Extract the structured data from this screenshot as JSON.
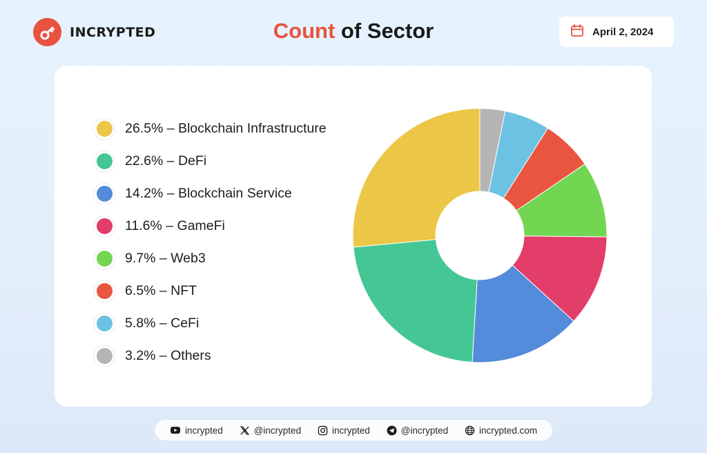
{
  "brand": {
    "name": "INCRYPTED",
    "logo_icon": "key-icon",
    "accent": "#e8523f"
  },
  "header": {
    "title_accent": "Count",
    "title_rest": " of Sector",
    "date": "April 2, 2024",
    "date_icon": "calendar-icon"
  },
  "chart_data": {
    "type": "pie",
    "variant": "donut",
    "title": "Count of Sector",
    "start": "top",
    "direction": "counter-clockwise",
    "legend_position": "left",
    "slices": [
      {
        "label": "Blockchain Infrastructure",
        "value": 26.5,
        "color": "#ecc646",
        "legend": "26.5% – Blockchain Infrastructure"
      },
      {
        "label": "DeFi",
        "value": 22.6,
        "color": "#45c795",
        "legend": "22.6% – DeFi"
      },
      {
        "label": "Blockchain Service",
        "value": 14.2,
        "color": "#548bdb",
        "legend": "14.2% – Blockchain Service"
      },
      {
        "label": "GameFi",
        "value": 11.6,
        "color": "#e23e69",
        "legend": "11.6% – GameFi"
      },
      {
        "label": "Web3",
        "value": 9.7,
        "color": "#73d653",
        "legend": "9.7% – Web3"
      },
      {
        "label": "NFT",
        "value": 6.5,
        "color": "#e9553f",
        "legend": "6.5% – NFT"
      },
      {
        "label": "CeFi",
        "value": 5.8,
        "color": "#6cc2e2",
        "legend": "5.8% – CeFi"
      },
      {
        "label": "Others",
        "value": 3.2,
        "color": "#b5b5b5",
        "legend": "3.2% – Others"
      }
    ]
  },
  "footer": {
    "links": [
      {
        "icon": "youtube-icon",
        "label": "incrypted"
      },
      {
        "icon": "x-icon",
        "label": "@incrypted"
      },
      {
        "icon": "instagram-icon",
        "label": "incrypted"
      },
      {
        "icon": "telegram-icon",
        "label": "@incrypted"
      },
      {
        "icon": "globe-icon",
        "label": "incrypted.com"
      }
    ]
  }
}
